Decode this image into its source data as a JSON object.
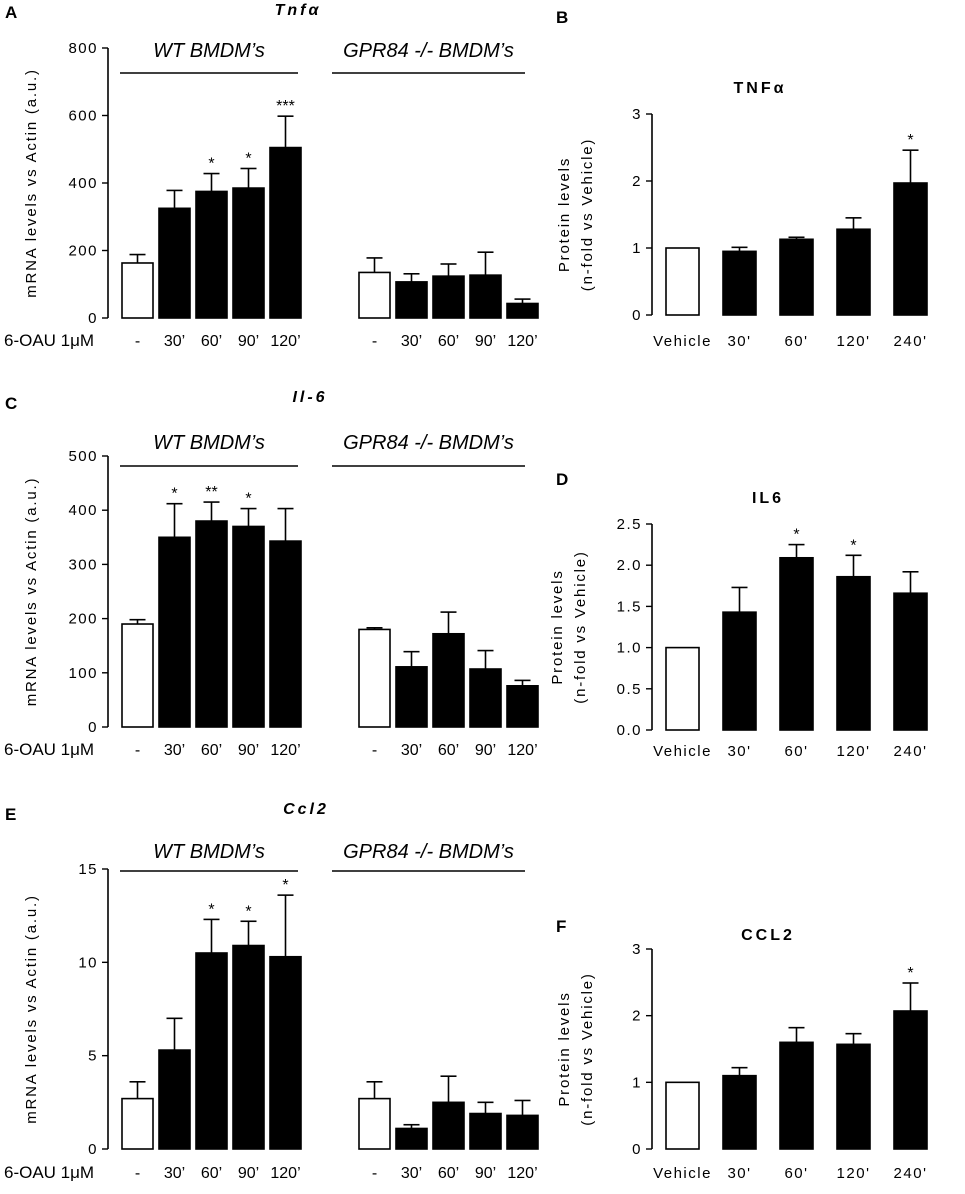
{
  "figure": {
    "panel_A": "A",
    "panel_B": "B",
    "panel_C": "C",
    "panel_D": "D",
    "panel_E": "E",
    "panel_F": "F"
  },
  "chart_data": [
    {
      "panel": "A",
      "type": "bar",
      "title": "Tnfα",
      "ylabel": "mRNA levels vs Actin (a.u.)",
      "ylim": [
        0,
        800
      ],
      "yticks": [
        "0",
        "200",
        "400",
        "600",
        "800"
      ],
      "x_prefix": "6-OAU 1μM",
      "groups": [
        "WT  BMDM’s",
        "GPR84 -/- BMDM’s"
      ],
      "categories": [
        "-",
        "30’",
        "60’",
        "90’",
        "120’",
        "-",
        "30’",
        "60’",
        "90’",
        "120’"
      ],
      "values": [
        163,
        325,
        375,
        385,
        505,
        135,
        107,
        124,
        127,
        43
      ],
      "errors": [
        25,
        53,
        53,
        58,
        93,
        43,
        24,
        36,
        68,
        13
      ],
      "fills": [
        "white",
        "black",
        "black",
        "black",
        "black",
        "white",
        "black",
        "black",
        "black",
        "black"
      ],
      "significance": [
        "",
        "",
        "*",
        "*",
        "***",
        "",
        "",
        "",
        "",
        ""
      ]
    },
    {
      "panel": "B",
      "type": "bar",
      "title": "TNFα",
      "ylabel": "Protein levels",
      "ylabel2": "(n-fold vs Vehicle)",
      "ylim": [
        0,
        3
      ],
      "yticks": [
        "0",
        "1",
        "2",
        "3"
      ],
      "categories": [
        "Vehicle",
        "30'",
        "60'",
        "120'",
        "240'"
      ],
      "values": [
        1.0,
        0.95,
        1.13,
        1.28,
        1.97
      ],
      "errors": [
        0.0,
        0.06,
        0.03,
        0.17,
        0.49
      ],
      "fills": [
        "white",
        "black",
        "black",
        "black",
        "black"
      ],
      "significance": [
        "",
        "",
        "",
        "",
        "*"
      ]
    },
    {
      "panel": "C",
      "type": "bar",
      "title": "Il-6",
      "ylabel": "mRNA levels vs Actin (a.u.)",
      "ylim": [
        0,
        500
      ],
      "yticks": [
        "0",
        "100",
        "200",
        "300",
        "400",
        "500"
      ],
      "x_prefix": "6-OAU 1μM",
      "groups": [
        "WT  BMDM’s",
        "GPR84 -/- BMDM’s"
      ],
      "categories": [
        "-",
        "30’",
        "60’",
        "90’",
        "120’",
        "-",
        "30’",
        "60’",
        "90’",
        "120’"
      ],
      "values": [
        190,
        350,
        380,
        370,
        343,
        180,
        111,
        172,
        107,
        76
      ],
      "errors": [
        8,
        62,
        35,
        33,
        60,
        3,
        28,
        40,
        34,
        10
      ],
      "fills": [
        "white",
        "black",
        "black",
        "black",
        "black",
        "white",
        "black",
        "black",
        "black",
        "black"
      ],
      "significance": [
        "",
        "*",
        "**",
        "*",
        "",
        "",
        "",
        "",
        "",
        ""
      ]
    },
    {
      "panel": "D",
      "type": "bar",
      "title": "IL6",
      "ylabel": "Protein levels",
      "ylabel2": "(n-fold vs Vehicle)",
      "ylim": [
        0,
        2.5
      ],
      "yticks": [
        "0.0",
        "0.5",
        "1.0",
        "1.5",
        "2.0",
        "2.5"
      ],
      "categories": [
        "Vehicle",
        "30'",
        "60'",
        "120'",
        "240'"
      ],
      "values": [
        1.0,
        1.43,
        2.09,
        1.86,
        1.66
      ],
      "errors": [
        0.0,
        0.3,
        0.16,
        0.26,
        0.26
      ],
      "fills": [
        "white",
        "black",
        "black",
        "black",
        "black"
      ],
      "significance": [
        "",
        "",
        "*",
        "*",
        ""
      ]
    },
    {
      "panel": "E",
      "type": "bar",
      "title": "Ccl2",
      "ylabel": "mRNA levels vs Actin (a.u.)",
      "ylim": [
        0,
        15
      ],
      "yticks": [
        "0",
        "5",
        "10",
        "15"
      ],
      "x_prefix": "6-OAU 1μM",
      "groups": [
        "WT  BMDM’s",
        "GPR84 -/- BMDM’s"
      ],
      "categories": [
        "-",
        "30’",
        "60’",
        "90’",
        "120’",
        "-",
        "30’",
        "60’",
        "90’",
        "120’"
      ],
      "values": [
        2.7,
        5.3,
        10.5,
        10.9,
        10.3,
        2.7,
        1.1,
        2.5,
        1.9,
        1.8
      ],
      "errors": [
        0.9,
        1.7,
        1.8,
        1.3,
        3.3,
        0.9,
        0.2,
        1.4,
        0.6,
        0.8
      ],
      "fills": [
        "white",
        "black",
        "black",
        "black",
        "black",
        "white",
        "black",
        "black",
        "black",
        "black"
      ],
      "significance": [
        "",
        "",
        "*",
        "*",
        "*",
        "",
        "",
        "",
        "",
        ""
      ]
    },
    {
      "panel": "F",
      "type": "bar",
      "title": "CCL2",
      "ylabel": "Protein levels",
      "ylabel2": "(n-fold vs Vehicle)",
      "ylim": [
        0,
        3
      ],
      "yticks": [
        "0",
        "1",
        "2",
        "3"
      ],
      "categories": [
        "Vehicle",
        "30'",
        "60'",
        "120'",
        "240'"
      ],
      "values": [
        1.0,
        1.1,
        1.6,
        1.57,
        2.07
      ],
      "errors": [
        0.0,
        0.12,
        0.22,
        0.16,
        0.42
      ],
      "fills": [
        "white",
        "black",
        "black",
        "black",
        "black"
      ],
      "significance": [
        "",
        "",
        "",
        "",
        "*"
      ]
    }
  ]
}
